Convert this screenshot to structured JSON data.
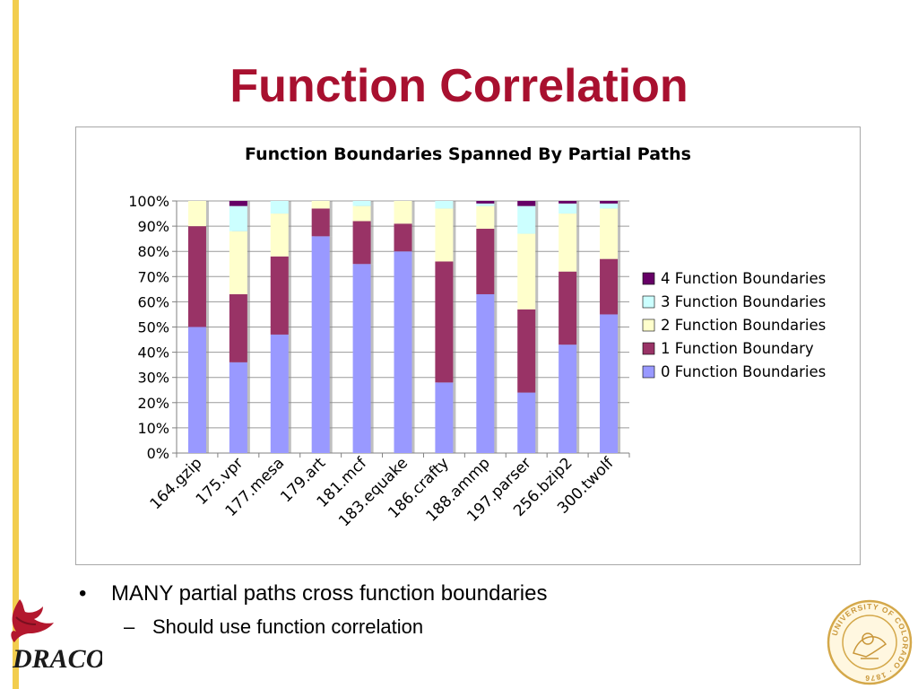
{
  "slide": {
    "title": "Function Correlation",
    "bullets": [
      {
        "text": "MANY partial paths cross function boundaries",
        "marker": "•"
      }
    ],
    "sub_bullets": [
      {
        "text": "Should use function correlation",
        "marker": "–"
      }
    ],
    "logo_text": "DRACO",
    "seal_text": "UNIVERSITY OF COLORADO · 1876"
  },
  "chart_data": {
    "type": "bar",
    "stacked": true,
    "percent": true,
    "title": "Function Boundaries Spanned By Partial Paths",
    "xlabel": "",
    "ylabel": "",
    "ylim": [
      0,
      100
    ],
    "yticks": [
      "0%",
      "10%",
      "20%",
      "30%",
      "40%",
      "50%",
      "60%",
      "70%",
      "80%",
      "90%",
      "100%"
    ],
    "grid": true,
    "legend_position": "right",
    "categories": [
      "164.gzip",
      "175.vpr",
      "177.mesa",
      "179.art",
      "181.mcf",
      "183.equake",
      "186.crafty",
      "188.ammp",
      "197.parser",
      "256.bzip2",
      "300.twolf"
    ],
    "series": [
      {
        "name": "0 Function Boundaries",
        "color": "#9999ff",
        "values": [
          50,
          36,
          47,
          86,
          75,
          80,
          28,
          63,
          24,
          43,
          55
        ]
      },
      {
        "name": "1 Function Boundary",
        "color": "#993366",
        "values": [
          40,
          27,
          31,
          11,
          17,
          11,
          48,
          26,
          33,
          29,
          22
        ]
      },
      {
        "name": "2 Function Boundaries",
        "color": "#ffffcc",
        "values": [
          10,
          25,
          17,
          3,
          6,
          9,
          21,
          9,
          30,
          23,
          20
        ]
      },
      {
        "name": "3 Function Boundaries",
        "color": "#ccffff",
        "values": [
          0,
          10,
          5,
          0,
          2,
          0,
          3,
          1,
          11,
          4,
          2
        ]
      },
      {
        "name": "4 Function Boundaries",
        "color": "#660066",
        "values": [
          0,
          2,
          0,
          0,
          0,
          0,
          0,
          1,
          2,
          1,
          1
        ]
      }
    ]
  }
}
